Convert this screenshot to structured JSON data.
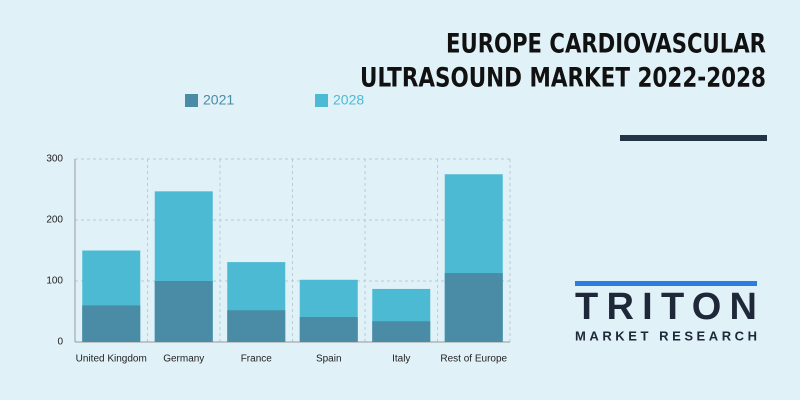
{
  "chart_data": {
    "type": "bar",
    "title": [
      "EUROPE CARDIOVASCULAR",
      "ULTRASOUND MARKET 2022-2028"
    ],
    "categories": [
      "United Kingdom",
      "Germany",
      "France",
      "Spain",
      "Italy",
      "Rest of Europe"
    ],
    "series": [
      {
        "name": "2021",
        "color": "#4a8ba6",
        "values": [
          60,
          100,
          52,
          41,
          34,
          113
        ]
      },
      {
        "name": "2028",
        "color": "#4dbad3",
        "values": [
          150,
          247,
          131,
          102,
          87,
          275
        ]
      }
    ],
    "ylim": [
      0,
      300
    ],
    "yticks": [
      0,
      100,
      200,
      300
    ],
    "grid": true
  },
  "logo": {
    "name": "TRITON",
    "tagline": "MARKET RESEARCH"
  }
}
